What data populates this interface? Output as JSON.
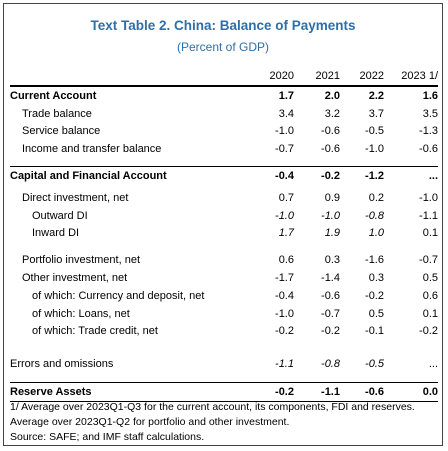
{
  "title": "Text Table 2. China: Balance of Payments",
  "subtitle": "(Percent of GDP)",
  "columns": [
    "2020",
    "2021",
    "2022",
    "2023 1/"
  ],
  "rows": [
    {
      "label": "Current Account",
      "values": [
        "1.7",
        "2.0",
        "2.2",
        "1.6"
      ]
    },
    {
      "label": "Trade balance",
      "values": [
        "3.4",
        "3.2",
        "3.7",
        "3.5"
      ]
    },
    {
      "label": "Service balance",
      "values": [
        "-1.0",
        "-0.6",
        "-0.5",
        "-1.3"
      ]
    },
    {
      "label": "Income and transfer balance",
      "values": [
        "-0.7",
        "-0.6",
        "-1.0",
        "-0.6"
      ]
    },
    {
      "label": "Capital and Financial Account",
      "values": [
        "-0.4",
        "-0.2",
        "-1.2",
        "..."
      ]
    },
    {
      "label": "Direct investment, net",
      "values": [
        "0.7",
        "0.9",
        "0.2",
        "-1.0"
      ]
    },
    {
      "label": "Outward DI",
      "values": [
        "-1.0",
        "-1.0",
        "-0.8",
        "-1.1"
      ]
    },
    {
      "label": "Inward DI",
      "values": [
        "1.7",
        "1.9",
        "1.0",
        "0.1"
      ]
    },
    {
      "label": "Portfolio investment, net",
      "values": [
        "0.6",
        "0.3",
        "-1.6",
        "-0.7"
      ]
    },
    {
      "label": "Other investment, net",
      "values": [
        "-1.7",
        "-1.4",
        "0.3",
        "0.5"
      ]
    },
    {
      "label": "of which: Currency and deposit, net",
      "values": [
        "-0.4",
        "-0.6",
        "-0.2",
        "0.6"
      ]
    },
    {
      "label": "of which: Loans, net",
      "values": [
        "-1.0",
        "-0.7",
        "0.5",
        "0.1"
      ]
    },
    {
      "label": "of which: Trade credit, net",
      "values": [
        "-0.2",
        "-0.2",
        "-0.1",
        "-0.2"
      ]
    },
    {
      "label": "Errors and omissions",
      "values": [
        "-1.1",
        "-0.8",
        "-0.5",
        "..."
      ]
    },
    {
      "label": "Reserve Assets",
      "values": [
        "-0.2",
        "-1.1",
        "-0.6",
        "0.0"
      ]
    }
  ],
  "footnotes": [
    "1/  Average over 2023Q1-Q3 for the current account, its components, FDI and reserves.",
    "Average over 2023Q1-Q2 for portfolio and other investment.",
    "Source: SAFE; and IMF staff calculations."
  ]
}
